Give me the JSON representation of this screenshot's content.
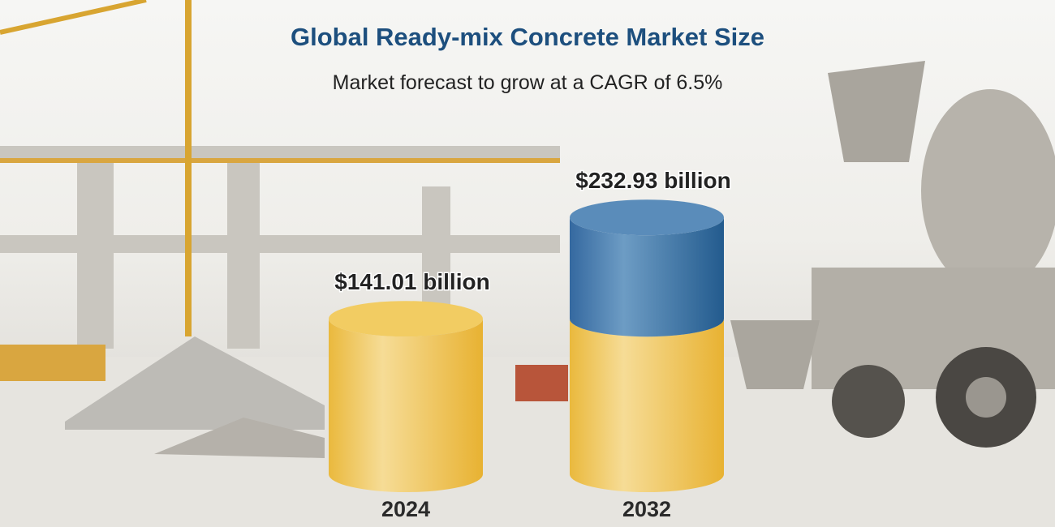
{
  "chart_data": {
    "type": "bar",
    "style": "3d-cylinder",
    "title": "Global Ready-mix Concrete Market Size",
    "subtitle": "Market forecast to grow at a CAGR of 6.5%",
    "categories": [
      "2024",
      "2032"
    ],
    "values": [
      141.01,
      232.93
    ],
    "value_labels": [
      "$141.01 billion",
      "$232.93 billion"
    ],
    "unit": "USD billion",
    "grid": false,
    "colors": {
      "base": "#eec04a",
      "growth": "#3a72a3",
      "title": "#1d4f7e"
    }
  }
}
